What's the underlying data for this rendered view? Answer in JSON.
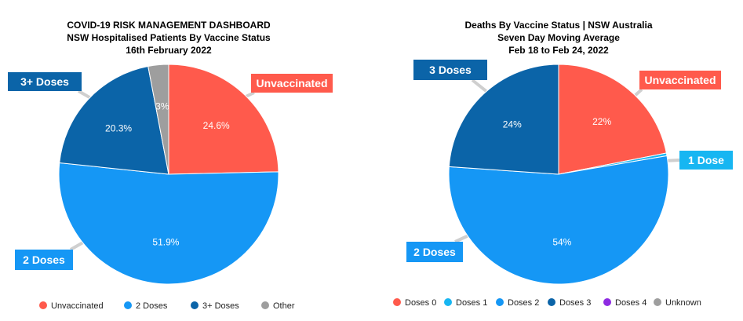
{
  "charts": [
    {
      "title_lines": [
        "COVID-19 RISK MANAGEMENT DASHBOARD",
        "NSW Hospitalised Patients By Vaccine Status",
        "16th February 2022"
      ]
    },
    {
      "title_lines": [
        "Deaths By Vaccine Status | NSW Australia",
        "Seven Day Moving Average",
        "Feb 18 to Feb 24, 2022"
      ]
    }
  ],
  "chart_data": [
    {
      "type": "pie",
      "title": "COVID-19 RISK MANAGEMENT DASHBOARD\nNSW Hospitalised Patients By Vaccine Status\n16th February 2022",
      "slices": [
        {
          "label": "Unvaccinated",
          "value": 24.6,
          "value_label": "24.6%",
          "color": "#ff5a4c"
        },
        {
          "label": "2 Doses",
          "value": 51.9,
          "value_label": "51.9%",
          "color": "#1597f5"
        },
        {
          "label": "3+ Doses",
          "value": 20.3,
          "value_label": "20.3%",
          "color": "#0b64a8"
        },
        {
          "label": "Other",
          "value": 3.0,
          "value_label": "3%",
          "color": "#9e9e9e"
        }
      ],
      "callouts": [
        {
          "text": "Unvaccinated",
          "color": "#ff5a4c"
        },
        {
          "text": "3+ Doses",
          "color": "#0b64a8"
        },
        {
          "text": "2 Doses",
          "color": "#1597f5"
        }
      ],
      "legend": [
        {
          "label": "Unvaccinated",
          "color": "#ff5a4c"
        },
        {
          "label": "2 Doses",
          "color": "#1597f5"
        },
        {
          "label": "3+ Doses",
          "color": "#0b64a8"
        },
        {
          "label": "Other",
          "color": "#9e9e9e"
        }
      ],
      "legend_position": "bottom"
    },
    {
      "type": "pie",
      "title": "Deaths By Vaccine Status | NSW Australia\nSeven Day Moving Average\nFeb 18 to Feb 24, 2022",
      "slices": [
        {
          "label": "Doses 0",
          "value": 22,
          "value_label": "22%",
          "color": "#ff5a4c"
        },
        {
          "label": "Doses 1",
          "value": 0.4,
          "value_label": "",
          "color": "#17b6f2"
        },
        {
          "label": "Doses 2",
          "value": 54,
          "value_label": "54%",
          "color": "#1597f5"
        },
        {
          "label": "Doses 3",
          "value": 24,
          "value_label": "24%",
          "color": "#0b64a8"
        }
      ],
      "callouts": [
        {
          "text": "Unvaccinated",
          "color": "#ff5a4c"
        },
        {
          "text": "1 Dose",
          "color": "#17b6f2"
        },
        {
          "text": "3 Doses",
          "color": "#0b64a8"
        },
        {
          "text": "2 Doses",
          "color": "#1597f5"
        }
      ],
      "legend": [
        {
          "label": "Doses 0",
          "color": "#ff5a4c"
        },
        {
          "label": "Doses 1",
          "color": "#17b6f2"
        },
        {
          "label": "Doses 2",
          "color": "#1597f5"
        },
        {
          "label": "Doses 3",
          "color": "#0b64a8"
        },
        {
          "label": "Doses 4",
          "color": "#8e2be2"
        },
        {
          "label": "Unknown",
          "color": "#9e9e9e"
        }
      ],
      "legend_position": "bottom"
    }
  ]
}
